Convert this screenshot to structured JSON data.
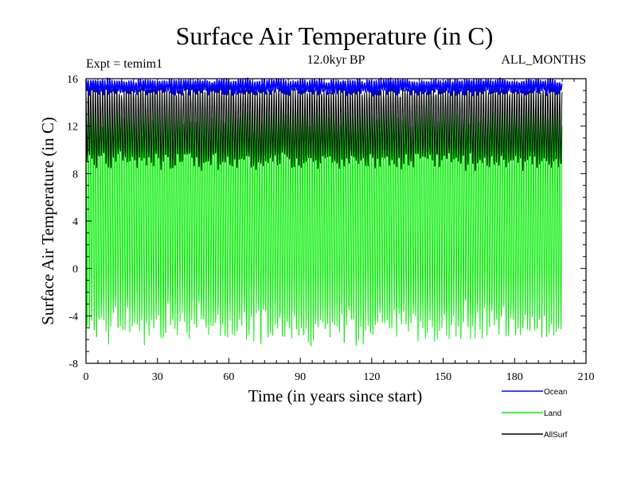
{
  "chart_data": {
    "type": "line",
    "title": "Surface Air Temperature (in C)",
    "subtitle_left": "Expt = temim1",
    "subtitle_center": "12.0kyr BP",
    "subtitle_right": "ALL_MONTHS",
    "xlabel": "Time (in years since start)",
    "ylabel": "Surface Air Temperature (in C)",
    "xlim": [
      0,
      210
    ],
    "ylim": [
      -8,
      16
    ],
    "x_ticks": [
      0,
      30,
      60,
      90,
      120,
      150,
      180,
      210
    ],
    "y_ticks": [
      -8,
      -4,
      0,
      4,
      8,
      12,
      16
    ],
    "x_tick_labels": [
      "0",
      "30",
      "60",
      "90",
      "120",
      "150",
      "180",
      "210"
    ],
    "y_tick_labels": [
      "-8",
      "-4",
      "0",
      "4",
      "8",
      "12",
      "16"
    ],
    "x_range_data": [
      0,
      200
    ],
    "samples_per_year": 12,
    "series": [
      {
        "name": "Ocean",
        "color": "#0000ff",
        "annual_min_range": [
          14.6,
          15.1
        ],
        "annual_max_range": [
          15.6,
          16.0
        ]
      },
      {
        "name": "Land",
        "color": "#00ee00",
        "annual_min_range": [
          -5.6,
          -3.8
        ],
        "annual_max_range": [
          12.8,
          14.2
        ]
      },
      {
        "name": "AllSurf",
        "color": "#000000",
        "annual_min_range": [
          8.6,
          9.6
        ],
        "annual_max_range": [
          14.8,
          15.4
        ]
      }
    ],
    "legend_position": "bottom-right"
  }
}
